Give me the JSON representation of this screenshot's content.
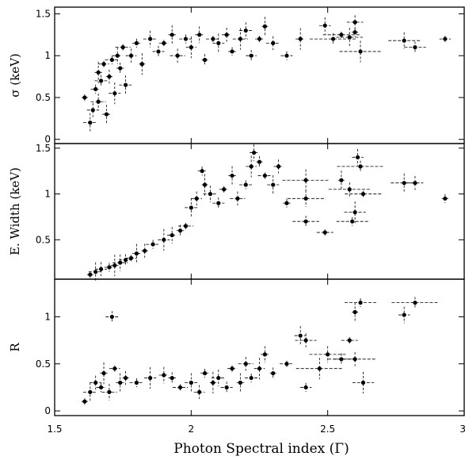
{
  "chart_data": {
    "type": "scatter",
    "x_axis": {
      "label": "Photon Spectral index (Γ)",
      "range": [
        1.5,
        3.0
      ],
      "ticks": [
        1.5,
        2,
        2.5,
        3
      ],
      "tick_labels": [
        "1.5",
        "2",
        "2.5",
        "3"
      ]
    },
    "panels": [
      {
        "id": "sigma",
        "ylabel": "σ (keV)",
        "ylim": [
          -0.05,
          1.58
        ],
        "yticks": [
          0,
          0.5,
          1,
          1.5
        ],
        "ytick_labels": [
          "0",
          "0.5",
          "1",
          "1.5"
        ],
        "points": [
          [
            1.61,
            0.5
          ],
          [
            1.63,
            0.2
          ],
          [
            1.64,
            0.35
          ],
          [
            1.65,
            0.6
          ],
          [
            1.66,
            0.8
          ],
          [
            1.66,
            0.45
          ],
          [
            1.67,
            0.7
          ],
          [
            1.68,
            0.9
          ],
          [
            1.69,
            0.3
          ],
          [
            1.7,
            0.75
          ],
          [
            1.71,
            0.95
          ],
          [
            1.72,
            0.55
          ],
          [
            1.73,
            1.0
          ],
          [
            1.74,
            0.85
          ],
          [
            1.75,
            1.1
          ],
          [
            1.76,
            0.65
          ],
          [
            1.78,
            1.0
          ],
          [
            1.8,
            1.15
          ],
          [
            1.82,
            0.9
          ],
          [
            1.85,
            1.2
          ],
          [
            1.88,
            1.05
          ],
          [
            1.9,
            1.15
          ],
          [
            1.93,
            1.25
          ],
          [
            1.95,
            1.0
          ],
          [
            1.98,
            1.2
          ],
          [
            2.0,
            1.1
          ],
          [
            2.03,
            1.25
          ],
          [
            2.05,
            0.95
          ],
          [
            2.08,
            1.2
          ],
          [
            2.1,
            1.15
          ],
          [
            2.13,
            1.25
          ],
          [
            2.15,
            1.05
          ],
          [
            2.18,
            1.2
          ],
          [
            2.2,
            1.3
          ],
          [
            2.22,
            1.0
          ],
          [
            2.25,
            1.2
          ],
          [
            2.27,
            1.35
          ],
          [
            2.3,
            1.15
          ],
          [
            2.35,
            1.0
          ],
          [
            2.4,
            1.2
          ],
          [
            2.49,
            1.36
          ],
          [
            2.52,
            1.2
          ],
          [
            2.55,
            1.25
          ],
          [
            2.58,
            1.22
          ],
          [
            2.6,
            1.4
          ],
          [
            2.6,
            1.28
          ],
          [
            2.62,
            1.05
          ],
          [
            2.78,
            1.18
          ],
          [
            2.82,
            1.1
          ],
          [
            2.93,
            1.2
          ]
        ]
      },
      {
        "id": "ew",
        "ylabel": "E. Width (keV)",
        "ylim": [
          0.07,
          1.55
        ],
        "yticks": [
          0.5,
          1,
          1.5
        ],
        "ytick_labels": [
          "0.5",
          "1",
          "1.5"
        ],
        "points": [
          [
            1.63,
            0.12
          ],
          [
            1.65,
            0.15
          ],
          [
            1.67,
            0.18
          ],
          [
            1.7,
            0.2
          ],
          [
            1.72,
            0.22
          ],
          [
            1.74,
            0.25
          ],
          [
            1.76,
            0.28
          ],
          [
            1.78,
            0.3
          ],
          [
            1.8,
            0.35
          ],
          [
            1.83,
            0.38
          ],
          [
            1.86,
            0.45
          ],
          [
            1.9,
            0.5
          ],
          [
            1.93,
            0.55
          ],
          [
            1.96,
            0.6
          ],
          [
            1.98,
            0.65
          ],
          [
            2.0,
            0.85
          ],
          [
            2.02,
            0.95
          ],
          [
            2.04,
            1.25
          ],
          [
            2.05,
            1.1
          ],
          [
            2.07,
            1.0
          ],
          [
            2.1,
            0.9
          ],
          [
            2.12,
            1.05
          ],
          [
            2.15,
            1.2
          ],
          [
            2.17,
            0.95
          ],
          [
            2.2,
            1.1
          ],
          [
            2.22,
            1.3
          ],
          [
            2.23,
            1.45
          ],
          [
            2.25,
            1.35
          ],
          [
            2.27,
            1.2
          ],
          [
            2.3,
            1.1
          ],
          [
            2.32,
            1.3
          ],
          [
            2.35,
            0.9
          ],
          [
            2.42,
            1.15
          ],
          [
            2.42,
            0.95
          ],
          [
            2.42,
            0.7
          ],
          [
            2.49,
            0.58
          ],
          [
            2.55,
            1.15
          ],
          [
            2.58,
            1.05
          ],
          [
            2.59,
            0.7
          ],
          [
            2.6,
            0.8
          ],
          [
            2.61,
            1.4
          ],
          [
            2.62,
            1.3
          ],
          [
            2.63,
            1.0
          ],
          [
            2.78,
            1.12
          ],
          [
            2.82,
            1.12
          ],
          [
            2.93,
            0.95
          ]
        ]
      },
      {
        "id": "R",
        "ylabel": "R",
        "ylim": [
          -0.05,
          1.4
        ],
        "yticks": [
          0,
          0.5,
          1
        ],
        "ytick_labels": [
          "0",
          "0.5",
          "1"
        ],
        "points": [
          [
            1.61,
            0.1
          ],
          [
            1.63,
            0.2
          ],
          [
            1.65,
            0.3
          ],
          [
            1.67,
            0.25
          ],
          [
            1.68,
            0.4
          ],
          [
            1.7,
            0.2
          ],
          [
            1.71,
            1.0
          ],
          [
            1.72,
            0.45
          ],
          [
            1.74,
            0.3
          ],
          [
            1.76,
            0.35
          ],
          [
            1.8,
            0.3
          ],
          [
            1.85,
            0.35
          ],
          [
            1.9,
            0.38
          ],
          [
            1.93,
            0.35
          ],
          [
            1.96,
            0.25
          ],
          [
            2.0,
            0.3
          ],
          [
            2.03,
            0.2
          ],
          [
            2.05,
            0.4
          ],
          [
            2.08,
            0.3
          ],
          [
            2.1,
            0.35
          ],
          [
            2.13,
            0.25
          ],
          [
            2.15,
            0.45
          ],
          [
            2.18,
            0.3
          ],
          [
            2.2,
            0.5
          ],
          [
            2.22,
            0.35
          ],
          [
            2.25,
            0.45
          ],
          [
            2.27,
            0.6
          ],
          [
            2.3,
            0.4
          ],
          [
            2.35,
            0.5
          ],
          [
            2.4,
            0.8
          ],
          [
            2.42,
            0.75
          ],
          [
            2.42,
            0.25
          ],
          [
            2.47,
            0.45
          ],
          [
            2.5,
            0.6
          ],
          [
            2.55,
            0.55
          ],
          [
            2.58,
            0.75
          ],
          [
            2.6,
            1.05
          ],
          [
            2.6,
            0.55
          ],
          [
            2.62,
            1.15
          ],
          [
            2.63,
            0.3
          ],
          [
            2.78,
            1.02
          ],
          [
            2.82,
            1.15
          ]
        ]
      }
    ]
  }
}
